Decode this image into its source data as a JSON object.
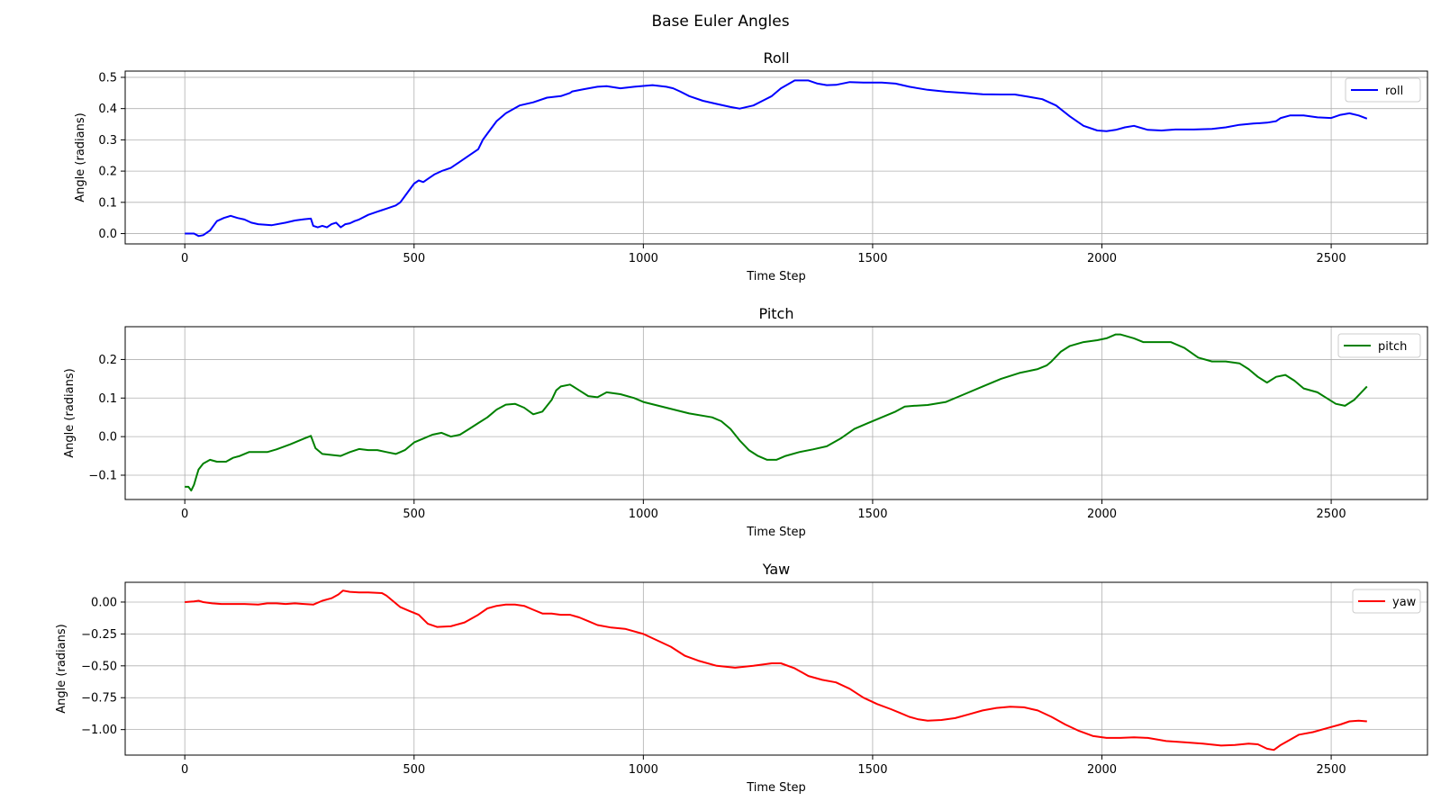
{
  "figure": {
    "title": "Base Euler Angles"
  },
  "chart_data": [
    {
      "type": "line",
      "title": "Roll",
      "xlabel": "Time Step",
      "ylabel": "Angle (radians)",
      "xlim": [
        -130,
        2710
      ],
      "ylim": [
        -0.033,
        0.52
      ],
      "xticks": [
        0,
        500,
        1000,
        1500,
        2000,
        2500
      ],
      "yticks": [
        0.0,
        0.1,
        0.2,
        0.3,
        0.4,
        0.5
      ],
      "ytick_labels": [
        "0.0",
        "0.1",
        "0.2",
        "0.3",
        "0.4",
        "0.5"
      ],
      "grid": true,
      "legend": "top-right",
      "series": [
        {
          "name": "roll",
          "color": "#0000ff",
          "x": [
            0,
            20,
            30,
            40,
            55,
            70,
            85,
            100,
            115,
            130,
            145,
            160,
            190,
            220,
            240,
            260,
            275,
            280,
            290,
            300,
            310,
            320,
            330,
            340,
            350,
            360,
            370,
            380,
            400,
            420,
            430,
            440,
            460,
            470,
            480,
            490,
            500,
            510,
            520,
            530,
            545,
            560,
            580,
            600,
            620,
            640,
            650,
            660,
            680,
            700,
            730,
            760,
            790,
            820,
            840,
            845,
            870,
            900,
            920,
            950,
            980,
            1020,
            1050,
            1065,
            1080,
            1100,
            1130,
            1160,
            1190,
            1210,
            1240,
            1260,
            1280,
            1300,
            1330,
            1360,
            1380,
            1400,
            1420,
            1450,
            1480,
            1520,
            1550,
            1580,
            1620,
            1660,
            1700,
            1740,
            1780,
            1810,
            1840,
            1870,
            1900,
            1930,
            1960,
            1990,
            2010,
            2030,
            2050,
            2070,
            2100,
            2130,
            2160,
            2200,
            2240,
            2270,
            2300,
            2330,
            2360,
            2380,
            2390,
            2410,
            2440,
            2470,
            2500,
            2520,
            2540,
            2560,
            2578
          ],
          "y": [
            0.0,
            0.0,
            -0.008,
            -0.005,
            0.01,
            0.04,
            0.05,
            0.057,
            0.05,
            0.045,
            0.035,
            0.03,
            0.027,
            0.035,
            0.042,
            0.046,
            0.048,
            0.025,
            0.02,
            0.025,
            0.02,
            0.03,
            0.035,
            0.02,
            0.03,
            0.033,
            0.04,
            0.045,
            0.06,
            0.07,
            0.075,
            0.08,
            0.09,
            0.1,
            0.12,
            0.14,
            0.16,
            0.17,
            0.165,
            0.175,
            0.19,
            0.2,
            0.21,
            0.23,
            0.25,
            0.27,
            0.3,
            0.32,
            0.36,
            0.385,
            0.41,
            0.42,
            0.435,
            0.44,
            0.45,
            0.455,
            0.462,
            0.47,
            0.472,
            0.465,
            0.47,
            0.475,
            0.47,
            0.465,
            0.455,
            0.44,
            0.425,
            0.415,
            0.405,
            0.4,
            0.41,
            0.425,
            0.44,
            0.465,
            0.49,
            0.49,
            0.48,
            0.475,
            0.476,
            0.485,
            0.483,
            0.483,
            0.48,
            0.47,
            0.46,
            0.454,
            0.45,
            0.446,
            0.445,
            0.445,
            0.438,
            0.43,
            0.41,
            0.375,
            0.345,
            0.33,
            0.328,
            0.332,
            0.34,
            0.345,
            0.332,
            0.33,
            0.333,
            0.333,
            0.335,
            0.34,
            0.348,
            0.352,
            0.355,
            0.36,
            0.37,
            0.378,
            0.378,
            0.372,
            0.37,
            0.38,
            0.385,
            0.378,
            0.368
          ]
        }
      ]
    },
    {
      "type": "line",
      "title": "Pitch",
      "xlabel": "Time Step",
      "ylabel": "Angle (radians)",
      "xlim": [
        -130,
        2710
      ],
      "ylim": [
        -0.163,
        0.285
      ],
      "xticks": [
        0,
        500,
        1000,
        1500,
        2000,
        2500
      ],
      "yticks": [
        -0.1,
        0.0,
        0.1,
        0.2
      ],
      "ytick_labels": [
        "−0.1",
        "0.0",
        "0.1",
        "0.2"
      ],
      "grid": true,
      "legend": "top-right",
      "series": [
        {
          "name": "pitch",
          "color": "#008000",
          "x": [
            0,
            8,
            14,
            20,
            25,
            30,
            40,
            55,
            70,
            90,
            105,
            120,
            140,
            180,
            200,
            230,
            260,
            275,
            285,
            300,
            340,
            360,
            380,
            400,
            420,
            440,
            460,
            470,
            480,
            500,
            520,
            540,
            560,
            580,
            600,
            620,
            640,
            660,
            680,
            700,
            720,
            740,
            760,
            780,
            800,
            810,
            820,
            840,
            860,
            880,
            900,
            920,
            950,
            980,
            1000,
            1050,
            1100,
            1150,
            1170,
            1190,
            1210,
            1230,
            1250,
            1270,
            1290,
            1310,
            1340,
            1370,
            1400,
            1430,
            1460,
            1490,
            1520,
            1550,
            1570,
            1590,
            1620,
            1660,
            1700,
            1740,
            1780,
            1820,
            1860,
            1880,
            1890,
            1910,
            1930,
            1960,
            1990,
            2010,
            2030,
            2040,
            2070,
            2090,
            2120,
            2150,
            2180,
            2210,
            2240,
            2270,
            2300,
            2320,
            2340,
            2360,
            2380,
            2400,
            2420,
            2440,
            2470,
            2490,
            2510,
            2530,
            2550,
            2578
          ],
          "y": [
            -0.13,
            -0.13,
            -0.14,
            -0.125,
            -0.105,
            -0.085,
            -0.07,
            -0.06,
            -0.065,
            -0.065,
            -0.055,
            -0.05,
            -0.04,
            -0.04,
            -0.033,
            -0.02,
            -0.005,
            0.002,
            -0.03,
            -0.045,
            -0.05,
            -0.04,
            -0.032,
            -0.035,
            -0.035,
            -0.04,
            -0.045,
            -0.04,
            -0.035,
            -0.015,
            -0.005,
            0.005,
            0.01,
            0.0,
            0.005,
            0.02,
            0.035,
            0.05,
            0.07,
            0.083,
            0.085,
            0.075,
            0.058,
            0.065,
            0.095,
            0.12,
            0.13,
            0.135,
            0.12,
            0.105,
            0.102,
            0.115,
            0.11,
            0.1,
            0.09,
            0.075,
            0.06,
            0.05,
            0.04,
            0.02,
            -0.01,
            -0.035,
            -0.05,
            -0.06,
            -0.06,
            -0.05,
            -0.04,
            -0.033,
            -0.025,
            -0.005,
            0.02,
            0.035,
            0.05,
            0.065,
            0.078,
            0.08,
            0.082,
            0.09,
            0.11,
            0.13,
            0.15,
            0.165,
            0.175,
            0.185,
            0.195,
            0.22,
            0.235,
            0.245,
            0.25,
            0.255,
            0.265,
            0.265,
            0.255,
            0.245,
            0.245,
            0.245,
            0.23,
            0.205,
            0.195,
            0.195,
            0.19,
            0.175,
            0.155,
            0.14,
            0.155,
            0.16,
            0.145,
            0.125,
            0.115,
            0.1,
            0.085,
            0.08,
            0.095,
            0.13
          ]
        }
      ]
    },
    {
      "type": "line",
      "title": "Yaw",
      "xlabel": "Time Step",
      "ylabel": "Angle (radians)",
      "xlim": [
        -130,
        2710
      ],
      "ylim": [
        -1.2,
        0.155
      ],
      "xticks": [
        0,
        500,
        1000,
        1500,
        2000,
        2500
      ],
      "yticks": [
        0.0,
        -0.25,
        -0.5,
        -0.75,
        -1.0
      ],
      "ytick_labels": [
        "0.00",
        "−0.25",
        "−0.50",
        "−0.75",
        "−1.00"
      ],
      "grid": true,
      "legend": "top-right",
      "series": [
        {
          "name": "yaw",
          "color": "#ff0000",
          "x": [
            0,
            20,
            30,
            40,
            60,
            80,
            100,
            130,
            160,
            180,
            200,
            220,
            240,
            260,
            280,
            300,
            320,
            335,
            345,
            360,
            380,
            400,
            430,
            440,
            450,
            470,
            490,
            510,
            530,
            550,
            580,
            610,
            640,
            660,
            680,
            700,
            720,
            740,
            760,
            780,
            800,
            820,
            840,
            860,
            880,
            900,
            930,
            960,
            1000,
            1030,
            1060,
            1090,
            1120,
            1160,
            1200,
            1240,
            1280,
            1300,
            1330,
            1360,
            1390,
            1420,
            1450,
            1480,
            1510,
            1540,
            1560,
            1580,
            1600,
            1620,
            1650,
            1680,
            1710,
            1740,
            1770,
            1800,
            1830,
            1860,
            1890,
            1920,
            1950,
            1980,
            2010,
            2040,
            2070,
            2100,
            2140,
            2180,
            2220,
            2260,
            2290,
            2320,
            2340,
            2360,
            2375,
            2390,
            2410,
            2430,
            2460,
            2490,
            2520,
            2540,
            2560,
            2578
          ],
          "y": [
            0.0,
            0.005,
            0.01,
            0.0,
            -0.01,
            -0.015,
            -0.015,
            -0.015,
            -0.02,
            -0.01,
            -0.01,
            -0.015,
            -0.01,
            -0.015,
            -0.02,
            0.01,
            0.03,
            0.06,
            0.09,
            0.08,
            0.075,
            0.075,
            0.07,
            0.05,
            0.02,
            -0.04,
            -0.07,
            -0.1,
            -0.17,
            -0.195,
            -0.19,
            -0.16,
            -0.1,
            -0.05,
            -0.03,
            -0.02,
            -0.02,
            -0.03,
            -0.06,
            -0.09,
            -0.09,
            -0.1,
            -0.1,
            -0.12,
            -0.15,
            -0.18,
            -0.2,
            -0.21,
            -0.25,
            -0.3,
            -0.35,
            -0.42,
            -0.46,
            -0.5,
            -0.515,
            -0.5,
            -0.48,
            -0.48,
            -0.52,
            -0.58,
            -0.61,
            -0.63,
            -0.68,
            -0.75,
            -0.8,
            -0.84,
            -0.87,
            -0.9,
            -0.92,
            -0.93,
            -0.925,
            -0.91,
            -0.88,
            -0.85,
            -0.83,
            -0.82,
            -0.825,
            -0.85,
            -0.9,
            -0.96,
            -1.01,
            -1.05,
            -1.065,
            -1.065,
            -1.06,
            -1.065,
            -1.09,
            -1.1,
            -1.11,
            -1.125,
            -1.12,
            -1.11,
            -1.115,
            -1.15,
            -1.16,
            -1.12,
            -1.08,
            -1.04,
            -1.02,
            -0.99,
            -0.96,
            -0.935,
            -0.93,
            -0.935
          ]
        }
      ]
    }
  ]
}
